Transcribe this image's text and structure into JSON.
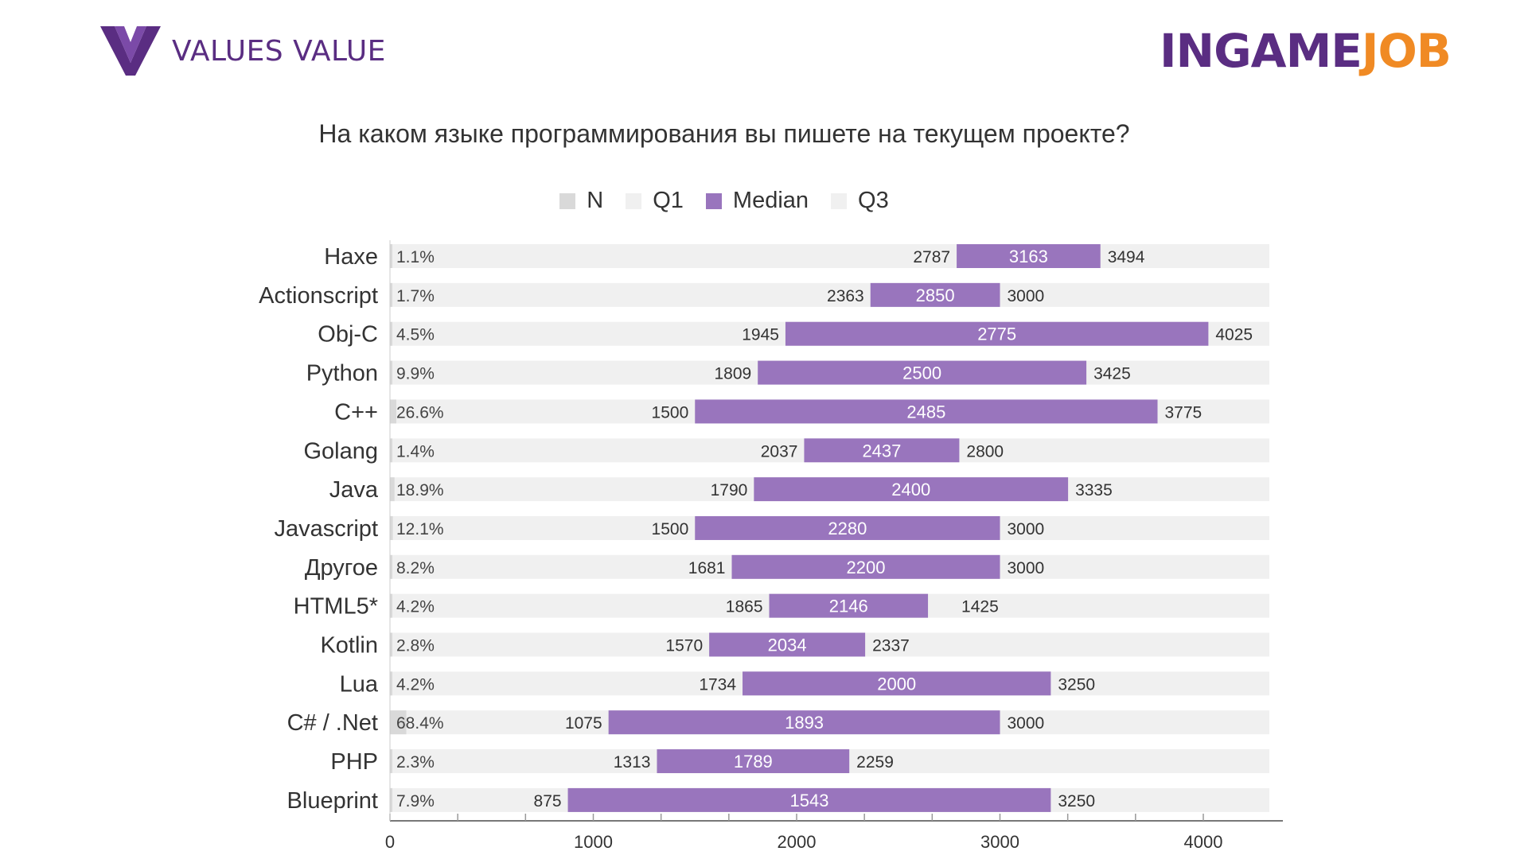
{
  "header": {
    "left_brand": "VALUES VALUE",
    "right_brand_part1": "INGAME",
    "right_brand_part2": "JOB"
  },
  "colors": {
    "n": "#d9d9d9",
    "q1": "#f0f0f0",
    "median": "#9975bd",
    "q3": "#f0f0f0",
    "brand_purple": "#5a2d82",
    "brand_orange": "#f08a24"
  },
  "chart_data": {
    "type": "bar",
    "title": "На каком языке программирования вы пишете на текущем проекте?",
    "legend": [
      "N",
      "Q1",
      "Median",
      "Q3"
    ],
    "legend_position": "top",
    "grid": false,
    "xlim": [
      0,
      4400
    ],
    "x_ticks": [
      "0",
      "1000",
      "2000",
      "3000",
      "4000"
    ],
    "categories": [
      "Haxe",
      "Actionscript",
      "Obj-C",
      "Python",
      "C++",
      "Golang",
      "Java",
      "Javascript",
      "Другое",
      "HTML5*",
      "Kotlin",
      "Lua",
      "C# / .Net",
      "PHP",
      "Blueprint"
    ],
    "n_labels": [
      "1.1%",
      "1.7%",
      "4.5%",
      "9.9%",
      "26.6%",
      "1.4%",
      "18.9%",
      "12.1%",
      "8.2%",
      "4.2%",
      "2.8%",
      "4.2%",
      "68.4%",
      "2.3%",
      "7.9%"
    ],
    "n_values": [
      1.1,
      1.7,
      4.5,
      9.9,
      26.6,
      1.4,
      18.9,
      12.1,
      8.2,
      4.2,
      2.8,
      4.2,
      68.4,
      2.3,
      7.9
    ],
    "series": [
      {
        "name": "Q1",
        "values": [
          2787,
          2363,
          1945,
          1809,
          1500,
          2037,
          1790,
          1500,
          1681,
          1865,
          1570,
          1734,
          1075,
          1313,
          875
        ]
      },
      {
        "name": "Median",
        "values": [
          3163,
          2850,
          2775,
          2500,
          2485,
          2437,
          2400,
          2280,
          2200,
          2146,
          2034,
          2000,
          1893,
          1789,
          1543
        ]
      },
      {
        "name": "Q3",
        "values": [
          3494,
          3000,
          4025,
          3425,
          3775,
          2800,
          3335,
          3000,
          3000,
          1425,
          2337,
          3250,
          3000,
          2259,
          3250
        ]
      }
    ],
    "bar_end": [
      3494,
      3000,
      4025,
      3425,
      3775,
      2800,
      3335,
      3000,
      3000,
      2646,
      2337,
      3250,
      3000,
      2259,
      3250
    ]
  }
}
